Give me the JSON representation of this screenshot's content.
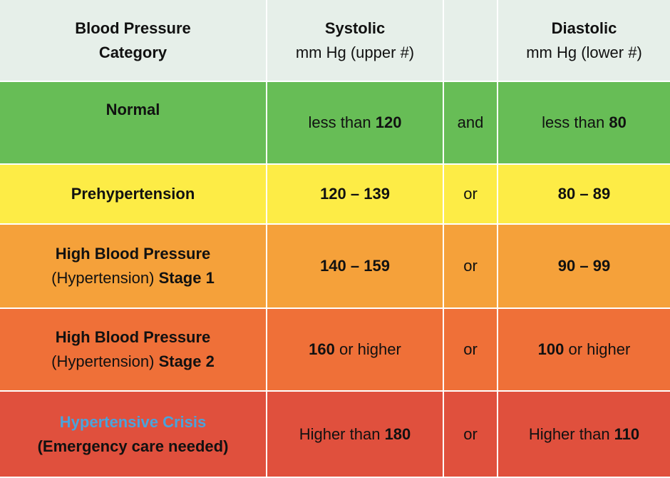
{
  "header": {
    "category_line1": "Blood Pressure",
    "category_line2": "Category",
    "systolic_title": "Systolic",
    "systolic_unit": "mm Hg (upper #)",
    "diastolic_title": "Diastolic",
    "diastolic_unit": "mm Hg (lower #)"
  },
  "rows": [
    {
      "category": "Normal",
      "systolic_prefix": "less than ",
      "systolic_value": "120",
      "connector": "and",
      "diastolic_prefix": "less than ",
      "diastolic_value": "80",
      "color": "#67bd56"
    },
    {
      "category": "Prehypertension",
      "systolic_value": "120 – 139",
      "connector": "or",
      "diastolic_value": "80 – 89",
      "color": "#fdec46"
    },
    {
      "category_line1": "High Blood Pressure",
      "category_line2_plain": "(Hypertension) ",
      "category_line2_bold": "Stage 1",
      "systolic_value": "140 – 159",
      "connector": "or",
      "diastolic_value": "90 – 99",
      "color": "#f5a13a"
    },
    {
      "category_line1": "High Blood Pressure",
      "category_line2_plain": "(Hypertension) ",
      "category_line2_bold": "Stage 2",
      "systolic_value": "160",
      "systolic_suffix": " or higher",
      "connector": "or",
      "diastolic_value": "100",
      "diastolic_suffix": " or higher",
      "color": "#ef7038"
    },
    {
      "category_line1": "Hypertensive Crisis",
      "category_line2": "(Emergency care needed)",
      "systolic_prefix": "Higher than ",
      "systolic_value": "180",
      "connector": "or",
      "diastolic_prefix": "Higher than ",
      "diastolic_value": "110",
      "color": "#e0503d"
    }
  ]
}
